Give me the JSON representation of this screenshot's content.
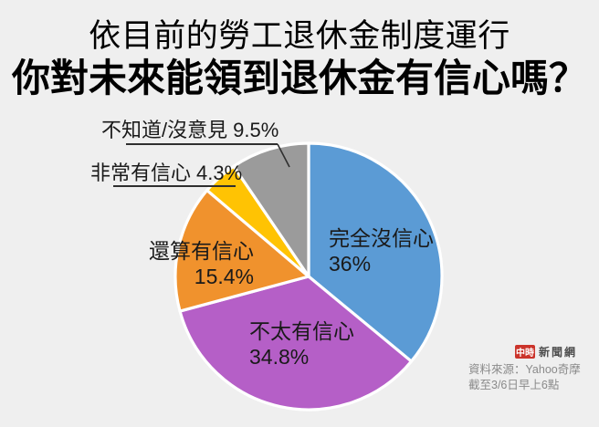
{
  "title": {
    "line1": "依目前的勞工退休金制度運行",
    "line2": "你對未來能領到退休金有信心嗎？"
  },
  "chart_data": {
    "type": "pie",
    "title": "依目前的勞工退休金制度運行 你對未來能領到退休金有信心嗎？",
    "units": "percent",
    "total": 100,
    "start_angle_deg": -90,
    "direction": "clockwise",
    "legend_position": "labels-on-chart",
    "segments": [
      {
        "id": "no-confidence-at-all",
        "label": "完全沒信心",
        "value": 36,
        "display": "36%",
        "color": "#5B9BD5",
        "label_style": "inside"
      },
      {
        "id": "not-very-confident",
        "label": "不太有信心",
        "value": 34.8,
        "display": "34.8%",
        "color": "#B55FC7",
        "label_style": "inside"
      },
      {
        "id": "fairly-confident",
        "label": "還算有信心",
        "value": 15.4,
        "display": "15.4%",
        "color": "#F0922D",
        "label_style": "inside"
      },
      {
        "id": "very-confident",
        "label": "非常有信心",
        "value": 4.3,
        "display": "4.3%",
        "color": "#FFC303",
        "label_style": "callout-underline"
      },
      {
        "id": "dont-know-no-opinion",
        "label": "不知道/沒意見",
        "value": 9.5,
        "display": "9.5%",
        "color": "#9B9B9B",
        "label_style": "callout-underline-leader"
      }
    ]
  },
  "footer": {
    "logo_primary": "中時",
    "logo_secondary": "新聞網",
    "source_line1": "資料來源：Yahoo奇摩",
    "source_line2": "截至3/6日早上6點"
  },
  "colors": {
    "background": "#EFEFEF",
    "slice_gap": "#FFFFFF",
    "label_text": "#1A1A1A",
    "callout_line": "#2F2F2F",
    "logo_red": "#CB342B",
    "logo_text": "#4D4D4D",
    "source_text": "#8A8A8A"
  }
}
